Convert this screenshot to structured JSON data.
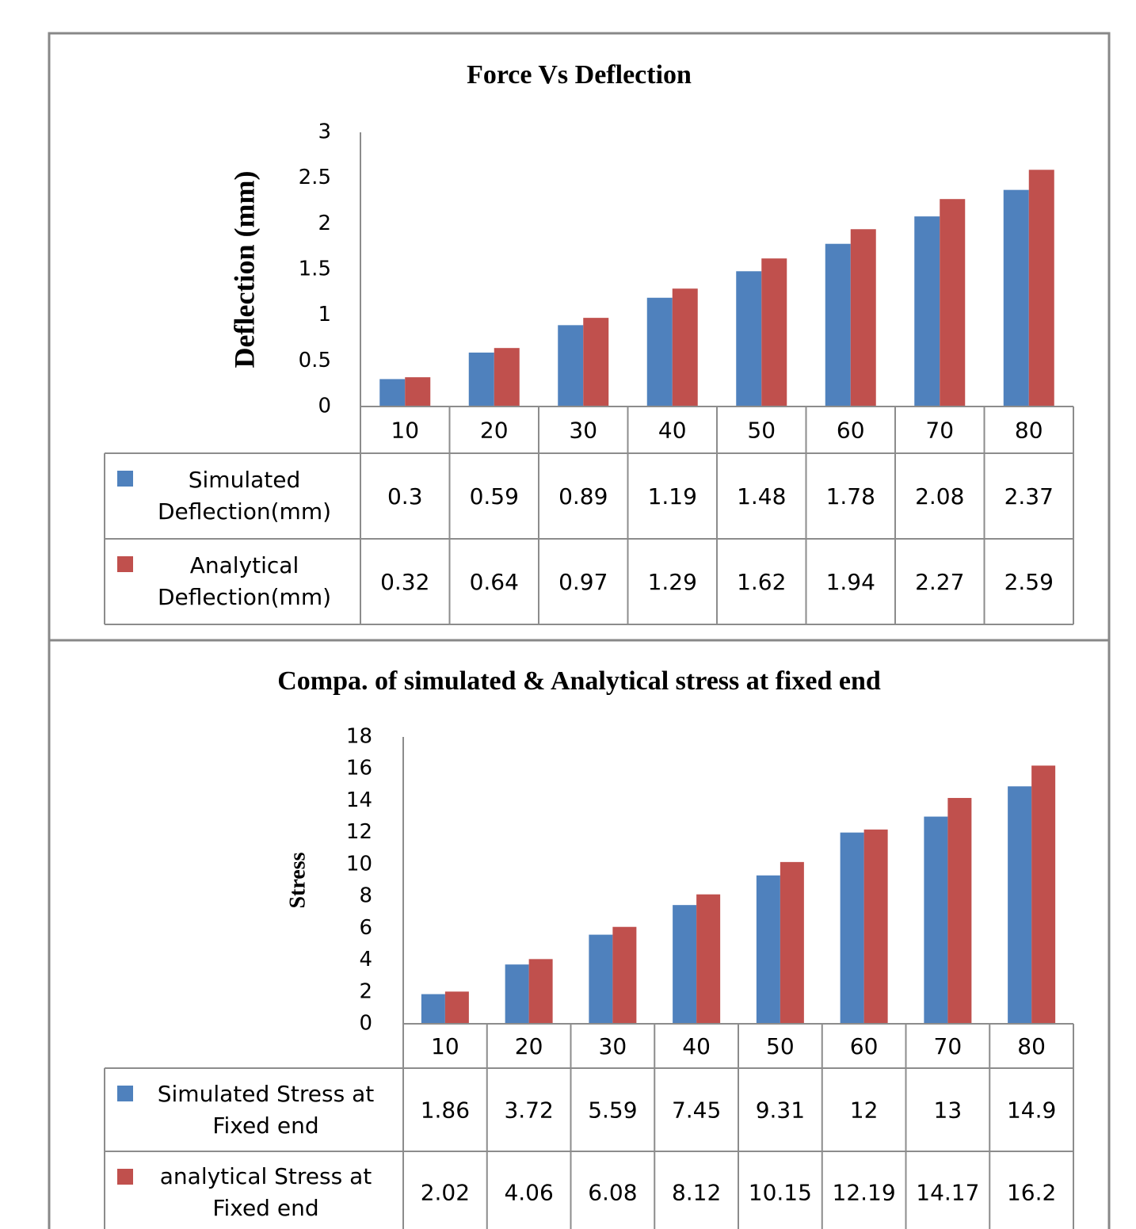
{
  "chart_data": [
    {
      "type": "bar",
      "title": "Force Vs Deflection",
      "y_label": "Deflection (mm)",
      "categories": [
        "10",
        "20",
        "30",
        "40",
        "50",
        "60",
        "70",
        "80"
      ],
      "series": [
        {
          "name": "Simulated Deflection(mm)",
          "color": "#4f81bd",
          "values": [
            0.3,
            0.59,
            0.89,
            1.19,
            1.48,
            1.78,
            2.08,
            2.37
          ]
        },
        {
          "name": "Analytical Deflection(mm)",
          "color": "#c0504d",
          "values": [
            0.32,
            0.64,
            0.97,
            1.29,
            1.62,
            1.94,
            2.27,
            2.59
          ]
        }
      ],
      "ylim": [
        0,
        3
      ],
      "yticks": [
        0,
        0.5,
        1,
        1.5,
        2,
        2.5,
        3
      ],
      "grid": false
    },
    {
      "type": "bar",
      "title": "Compa. of simulated & Analytical stress at fixed end",
      "y_label": "Stress",
      "categories": [
        "10",
        "20",
        "30",
        "40",
        "50",
        "60",
        "70",
        "80"
      ],
      "series": [
        {
          "name": "Simulated Stress at Fixed end",
          "color": "#4f81bd",
          "values": [
            1.86,
            3.72,
            5.59,
            7.45,
            9.31,
            12,
            13,
            14.9
          ]
        },
        {
          "name": "analytical Stress at Fixed end",
          "color": "#c0504d",
          "values": [
            2.02,
            4.06,
            6.08,
            8.12,
            10.15,
            12.19,
            14.17,
            16.2
          ]
        }
      ],
      "ylim": [
        0,
        18
      ],
      "yticks": [
        0,
        2,
        4,
        6,
        8,
        10,
        12,
        14,
        16,
        18
      ],
      "grid": false
    }
  ]
}
